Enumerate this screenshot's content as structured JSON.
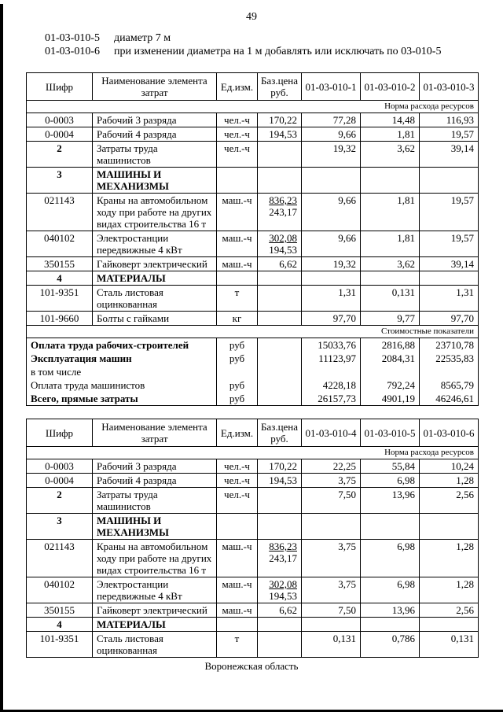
{
  "page": {
    "number": "49",
    "footer": "Воронежская область"
  },
  "intro": [
    {
      "code": "01-03-010-5",
      "text": "диаметр 7 м"
    },
    {
      "code": "01-03-010-6",
      "text": "при изменении диаметра на 1 м добавлять или исключать по 03-010-5"
    }
  ],
  "tables": [
    {
      "headers": {
        "code": "Шифр",
        "name": "Наименование элемента затрат",
        "unit": "Ед.изм.",
        "price": "Баз.цена руб.",
        "cols": [
          "01-03-010-1",
          "01-03-010-2",
          "01-03-010-3"
        ]
      },
      "resource_band": "Норма расхода ресурсов",
      "resource_rows": [
        {
          "code": "0-0003",
          "name": "Рабочий 3 разряда",
          "unit": "чел.-ч",
          "price": [
            "170,22"
          ],
          "values": [
            "77,28",
            "14,48",
            "116,93"
          ]
        },
        {
          "code": "0-0004",
          "name": "Рабочий 4 разряда",
          "unit": "чел.-ч",
          "price": [
            "194,53"
          ],
          "values": [
            "9,66",
            "1,81",
            "19,57"
          ]
        },
        {
          "code": "2",
          "bold_code": true,
          "name": "Затраты труда машинистов",
          "unit": "чел.-ч",
          "price": [],
          "values": [
            "19,32",
            "3,62",
            "39,14"
          ]
        },
        {
          "code": "3",
          "name": "МАШИНЫ И МЕХАНИЗМЫ",
          "section": true
        },
        {
          "code": "021143",
          "name": "Краны на автомобильном ходу при работе на других видах строительства 16 т",
          "unit": "маш.-ч",
          "price": [
            "836,23",
            "243,17"
          ],
          "values": [
            "9,66",
            "1,81",
            "19,57"
          ]
        },
        {
          "code": "040102",
          "name": "Электростанции передвижные 4 кВт",
          "unit": "маш.-ч",
          "price": [
            "302,08",
            "194,53"
          ],
          "values": [
            "9,66",
            "1,81",
            "19,57"
          ]
        },
        {
          "code": "350155",
          "name": "Гайковерт электрический",
          "unit": "маш.-ч",
          "price": [
            "6,62"
          ],
          "values": [
            "19,32",
            "3,62",
            "39,14"
          ]
        },
        {
          "code": "4",
          "name": "МАТЕРИАЛЫ",
          "section": true
        },
        {
          "code": "101-9351",
          "name": "Сталь листовая оцинкованная",
          "unit": "т",
          "price": [],
          "values": [
            "1,31",
            "0,131",
            "1,31"
          ]
        },
        {
          "code": "101-9660",
          "name": "Болты с гайками",
          "unit": "кг",
          "price": [],
          "values": [
            "97,70",
            "9,77",
            "97,70"
          ]
        }
      ],
      "cost_band": "Стоимостные показатели",
      "cost_rows": [
        {
          "label": "Оплата труда рабочих-строителей",
          "bold": true,
          "unit": "руб",
          "values": [
            "15033,76",
            "2816,88",
            "23710,78"
          ]
        },
        {
          "label": "Эксплуатация машин",
          "bold": true,
          "unit": "руб",
          "values": [
            "11123,97",
            "2084,31",
            "22535,83"
          ]
        },
        {
          "label": "в том числе",
          "bold": false,
          "unit": "",
          "values": [
            "",
            "",
            ""
          ]
        },
        {
          "label": "Оплата труда машинистов",
          "bold": false,
          "unit": "руб",
          "values": [
            "4228,18",
            "792,24",
            "8565,79"
          ]
        },
        {
          "label": "Всего, прямые затраты",
          "bold": true,
          "unit": "руб",
          "values": [
            "26157,73",
            "4901,19",
            "46246,61"
          ]
        }
      ]
    },
    {
      "headers": {
        "code": "Шифр",
        "name": "Наименование элемента затрат",
        "unit": "Ед.изм.",
        "price": "Баз.цена руб.",
        "cols": [
          "01-03-010-4",
          "01-03-010-5",
          "01-03-010-6"
        ]
      },
      "resource_band": "Норма расхода ресурсов",
      "resource_rows": [
        {
          "code": "0-0003",
          "name": "Рабочий 3 разряда",
          "unit": "чел.-ч",
          "price": [
            "170,22"
          ],
          "values": [
            "22,25",
            "55,84",
            "10,24"
          ]
        },
        {
          "code": "0-0004",
          "name": "Рабочий 4 разряда",
          "unit": "чел.-ч",
          "price": [
            "194,53"
          ],
          "values": [
            "3,75",
            "6,98",
            "1,28"
          ]
        },
        {
          "code": "2",
          "bold_code": true,
          "name": "Затраты труда машинистов",
          "unit": "чел.-ч",
          "price": [],
          "values": [
            "7,50",
            "13,96",
            "2,56"
          ]
        },
        {
          "code": "3",
          "name": "МАШИНЫ И МЕХАНИЗМЫ",
          "section": true
        },
        {
          "code": "021143",
          "name": "Краны на автомобильном ходу при работе на других видах строительства 16 т",
          "unit": "маш.-ч",
          "price": [
            "836,23",
            "243,17"
          ],
          "values": [
            "3,75",
            "6,98",
            "1,28"
          ]
        },
        {
          "code": "040102",
          "name": "Электростанции передвижные 4 кВт",
          "unit": "маш.-ч",
          "price": [
            "302,08",
            "194,53"
          ],
          "values": [
            "3,75",
            "6,98",
            "1,28"
          ]
        },
        {
          "code": "350155",
          "name": "Гайковерт электрический",
          "unit": "маш.-ч",
          "price": [
            "6,62"
          ],
          "values": [
            "7,50",
            "13,96",
            "2,56"
          ]
        },
        {
          "code": "4",
          "name": "МАТЕРИАЛЫ",
          "section": true
        },
        {
          "code": "101-9351",
          "name": "Сталь листовая оцинкованная",
          "unit": "т",
          "price": [],
          "values": [
            "0,131",
            "0,786",
            "0,131"
          ]
        }
      ]
    }
  ]
}
